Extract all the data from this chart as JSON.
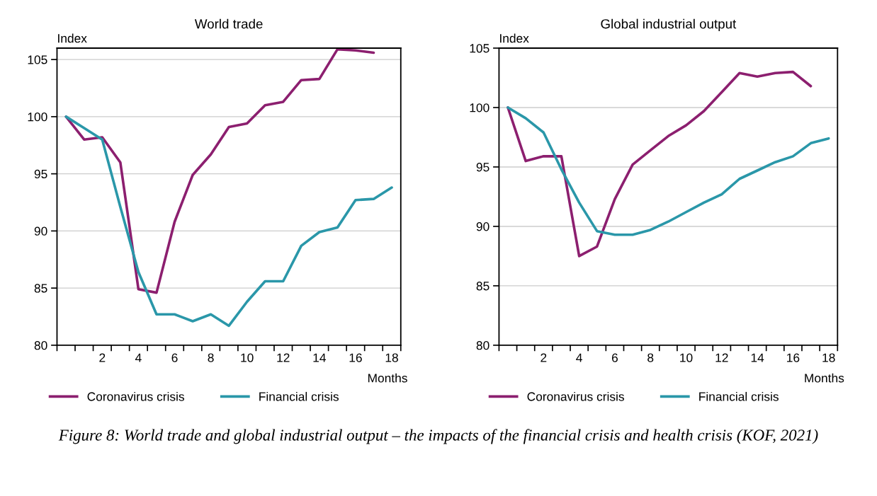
{
  "chart_data": [
    {
      "type": "line",
      "title": "World trade",
      "ylabel": "Index",
      "xlabel": "Months",
      "x": [
        0,
        1,
        2,
        3,
        4,
        5,
        6,
        7,
        8,
        9,
        10,
        11,
        12,
        13,
        14,
        15,
        16,
        17,
        18
      ],
      "series": [
        {
          "name": "Coronavirus crisis",
          "color": "#8c1f6f",
          "values": [
            100,
            98.0,
            98.2,
            96.0,
            84.9,
            84.6,
            90.8,
            94.9,
            96.7,
            99.1,
            99.4,
            101.0,
            101.3,
            103.2,
            103.3,
            105.9,
            105.8,
            105.6,
            null
          ]
        },
        {
          "name": "Financial crisis",
          "color": "#2a97a9",
          "values": [
            100,
            99.0,
            98.0,
            92.1,
            86.4,
            82.7,
            82.7,
            82.1,
            82.7,
            81.7,
            83.8,
            85.6,
            85.6,
            88.7,
            89.9,
            90.3,
            92.7,
            92.8,
            93.8
          ]
        }
      ],
      "xlim": [
        -0.5,
        18.5
      ],
      "xticks": [
        {
          "value": -0.5,
          "label": null
        },
        {
          "value": 0.5,
          "label": null
        },
        {
          "value": 1.5,
          "label": null
        },
        {
          "value": 2,
          "label": "2"
        },
        {
          "value": 2.5,
          "label": null
        },
        {
          "value": 3.5,
          "label": null
        },
        {
          "value": 4,
          "label": "4"
        },
        {
          "value": 4.5,
          "label": null
        },
        {
          "value": 5.5,
          "label": null
        },
        {
          "value": 6,
          "label": "6"
        },
        {
          "value": 6.5,
          "label": null
        },
        {
          "value": 7.5,
          "label": null
        },
        {
          "value": 8,
          "label": "8"
        },
        {
          "value": 8.5,
          "label": null
        },
        {
          "value": 9.5,
          "label": null
        },
        {
          "value": 10,
          "label": "10"
        },
        {
          "value": 10.5,
          "label": null
        },
        {
          "value": 11.5,
          "label": null
        },
        {
          "value": 12,
          "label": "12"
        },
        {
          "value": 12.5,
          "label": null
        },
        {
          "value": 13.5,
          "label": null
        },
        {
          "value": 14,
          "label": "14"
        },
        {
          "value": 14.5,
          "label": null
        },
        {
          "value": 15.5,
          "label": null
        },
        {
          "value": 16,
          "label": "16"
        },
        {
          "value": 16.5,
          "label": null
        },
        {
          "value": 17.5,
          "label": null
        },
        {
          "value": 18,
          "label": "18"
        },
        {
          "value": 18.5,
          "label": null
        }
      ],
      "ylim": [
        80,
        106
      ],
      "yticks": [
        80,
        85,
        90,
        95,
        100,
        105
      ],
      "grid": "y",
      "legend": "bottom",
      "marker": "none",
      "line_style": "solid",
      "annotations": [
        "Figure 8: World trade and global industrial output – the impacts of the financial crisis and health crisis (KOF, 2021)"
      ]
    },
    {
      "type": "line",
      "title": "Global industrial output",
      "ylabel": "Index",
      "xlabel": "Months",
      "x": [
        0,
        1,
        2,
        3,
        4,
        5,
        6,
        7,
        8,
        9,
        10,
        11,
        12,
        13,
        14,
        15,
        16,
        17,
        18
      ],
      "series": [
        {
          "name": "Coronavirus crisis",
          "color": "#8c1f6f",
          "values": [
            100,
            95.5,
            95.9,
            95.9,
            87.5,
            88.3,
            92.3,
            95.2,
            96.4,
            97.6,
            98.5,
            99.7,
            101.3,
            102.9,
            102.6,
            102.9,
            103.0,
            101.8,
            null
          ]
        },
        {
          "name": "Financial crisis",
          "color": "#2a97a9",
          "values": [
            100,
            99.1,
            97.9,
            94.8,
            92.0,
            89.6,
            89.3,
            89.3,
            89.7,
            90.4,
            91.2,
            92.0,
            92.7,
            94.0,
            94.7,
            95.4,
            95.9,
            97.0,
            97.4
          ]
        }
      ],
      "xlim": [
        -0.5,
        18.5
      ],
      "xticks": [
        {
          "value": -0.5,
          "label": null
        },
        {
          "value": 0.5,
          "label": null
        },
        {
          "value": 1.5,
          "label": null
        },
        {
          "value": 2,
          "label": "2"
        },
        {
          "value": 2.5,
          "label": null
        },
        {
          "value": 3.5,
          "label": null
        },
        {
          "value": 4,
          "label": "4"
        },
        {
          "value": 4.5,
          "label": null
        },
        {
          "value": 5.5,
          "label": null
        },
        {
          "value": 6,
          "label": "6"
        },
        {
          "value": 6.5,
          "label": null
        },
        {
          "value": 7.5,
          "label": null
        },
        {
          "value": 8,
          "label": "8"
        },
        {
          "value": 8.5,
          "label": null
        },
        {
          "value": 9.5,
          "label": null
        },
        {
          "value": 10,
          "label": "10"
        },
        {
          "value": 10.5,
          "label": null
        },
        {
          "value": 11.5,
          "label": null
        },
        {
          "value": 12,
          "label": "12"
        },
        {
          "value": 12.5,
          "label": null
        },
        {
          "value": 13.5,
          "label": null
        },
        {
          "value": 14,
          "label": "14"
        },
        {
          "value": 14.5,
          "label": null
        },
        {
          "value": 15.5,
          "label": null
        },
        {
          "value": 16,
          "label": "16"
        },
        {
          "value": 16.5,
          "label": null
        },
        {
          "value": 17.5,
          "label": null
        },
        {
          "value": 18,
          "label": "18"
        },
        {
          "value": 18.5,
          "label": null
        }
      ],
      "ylim": [
        80,
        105
      ],
      "yticks": [
        80,
        85,
        90,
        95,
        100,
        105
      ],
      "grid": "y",
      "legend": "bottom",
      "marker": "none",
      "line_style": "solid"
    }
  ]
}
